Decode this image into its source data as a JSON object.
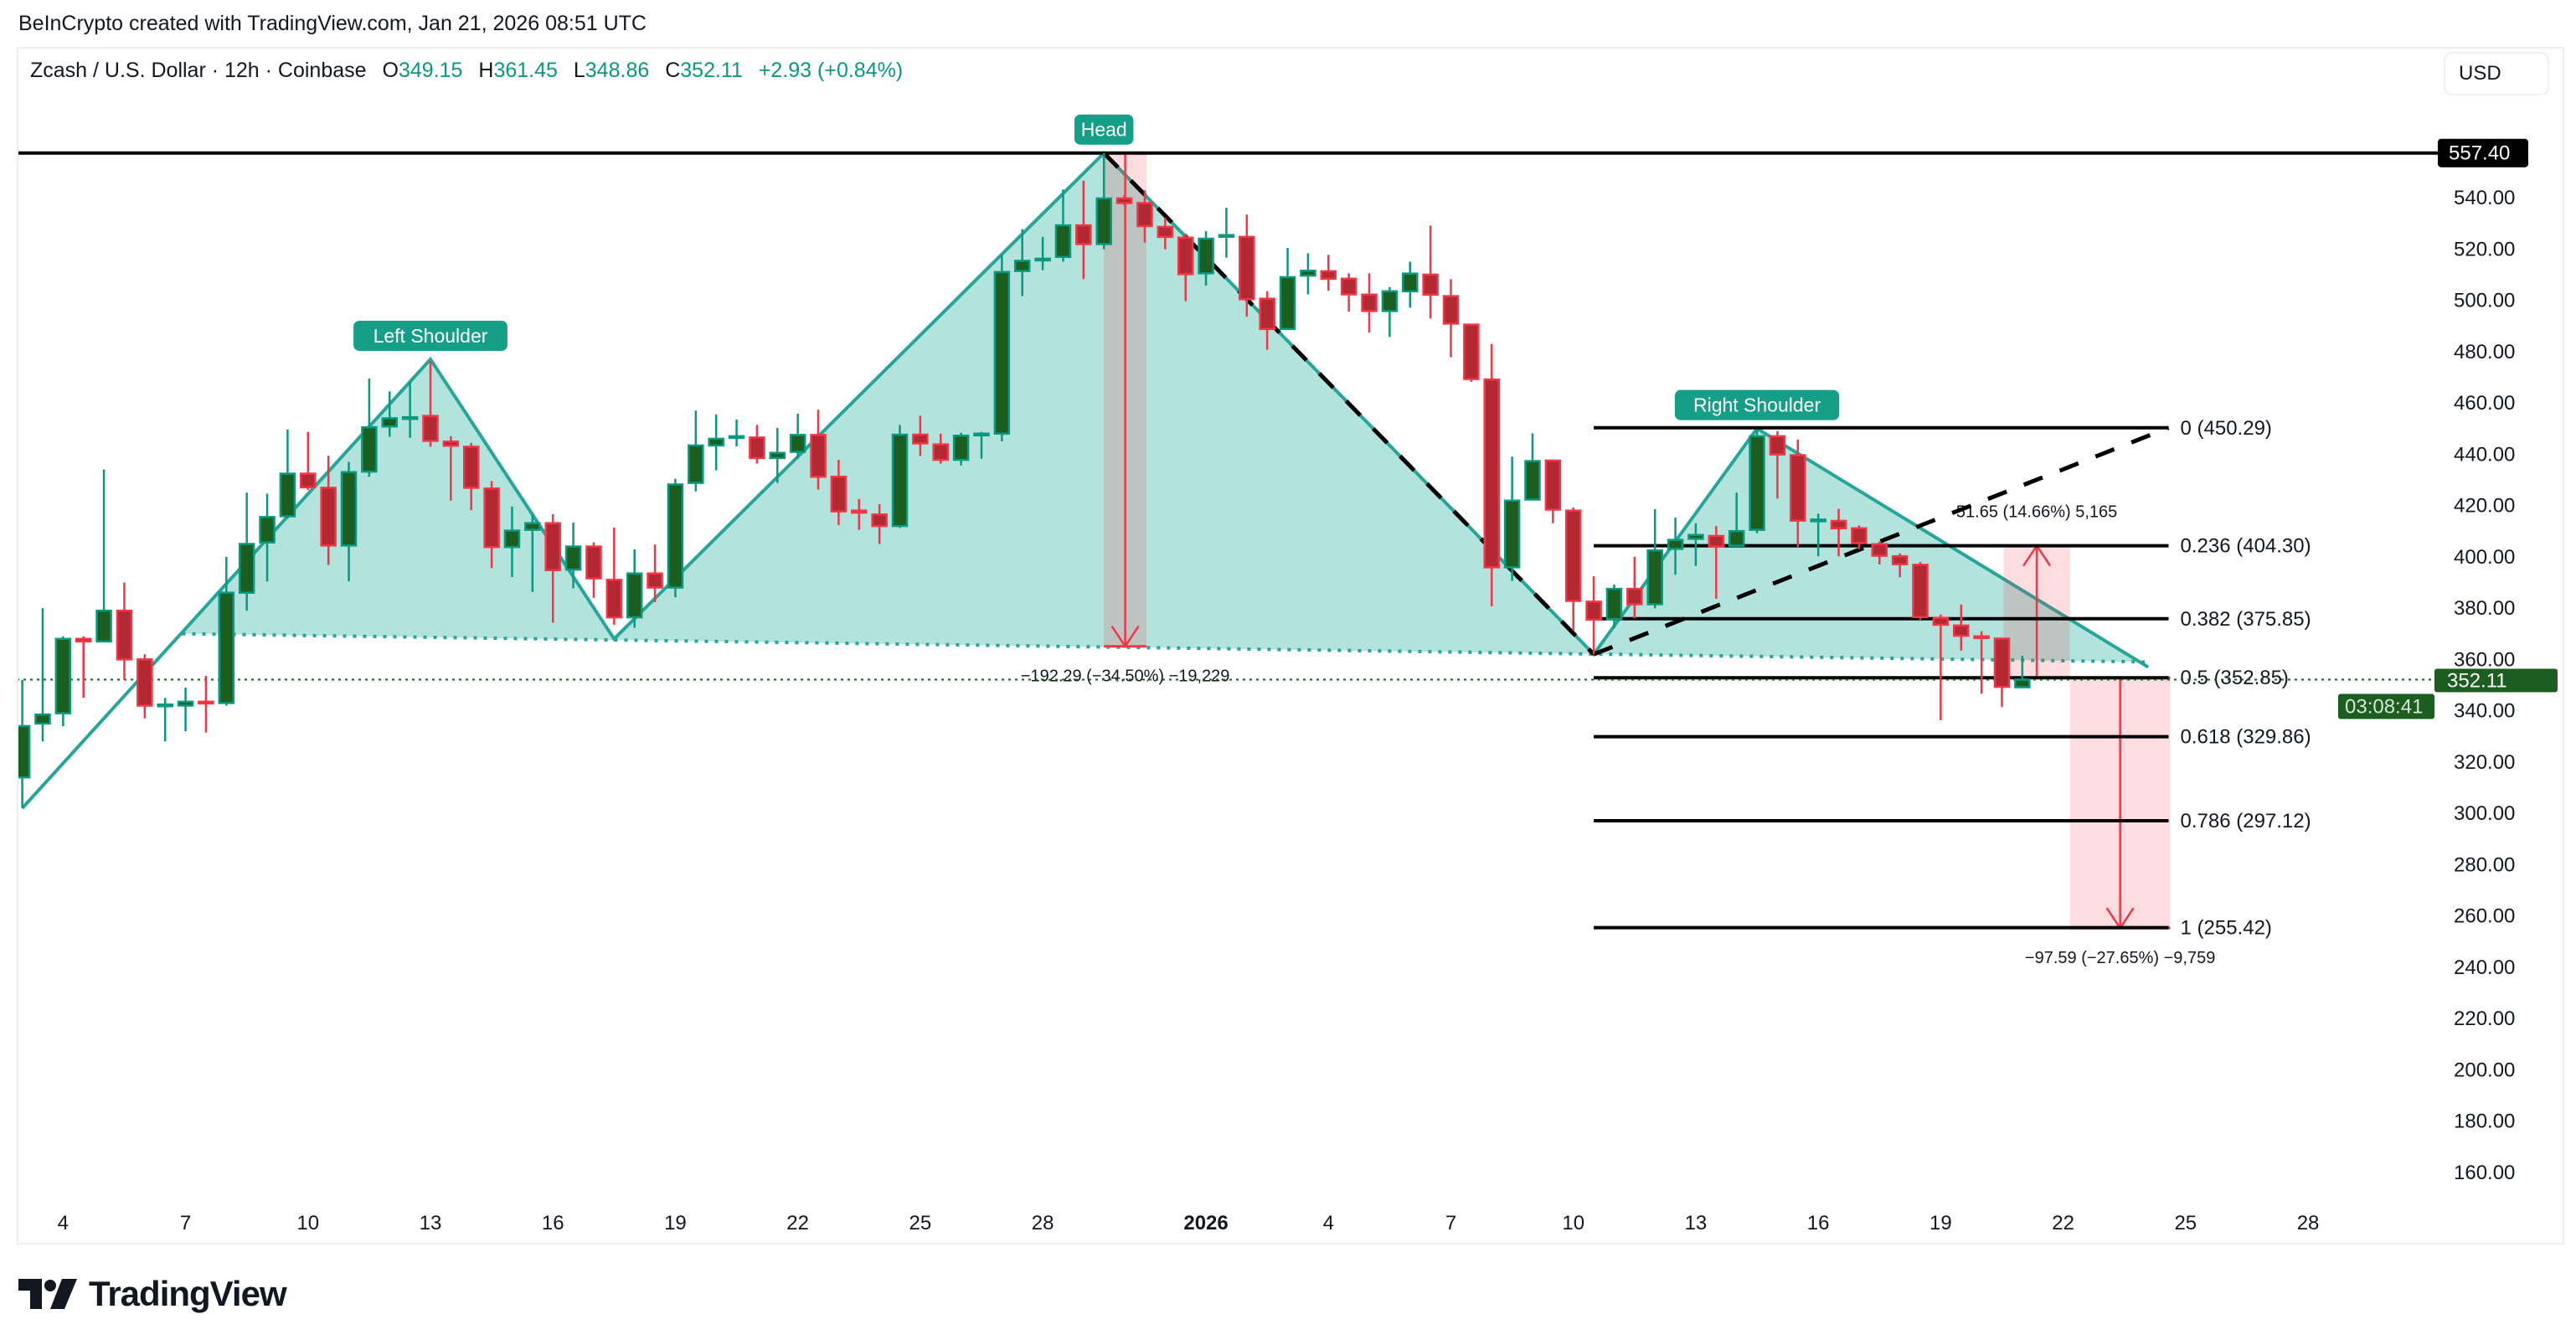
{
  "header": {
    "credit": "BeInCrypto created with TradingView.com, Jan 21, 2026 08:51 UTC"
  },
  "legend": {
    "symbol": "Zcash / U.S. Dollar · 12h · Coinbase",
    "o_label": "O",
    "o": "349.15",
    "h_label": "H",
    "h": "361.45",
    "l_label": "L",
    "l": "348.86",
    "c_label": "C",
    "c": "352.11",
    "change": "+2.93 (+0.84%)"
  },
  "currency_button": "USD",
  "logo_text": "TradingView",
  "colors": {
    "up": "#089981",
    "up_body": "#1b5e20",
    "down": "#f23645",
    "down_body": "#b22833",
    "pattern": "#26a69a",
    "pattern_fill": "#b2e3dc",
    "badge": "#159f88",
    "measure_fill": "#fddfe2",
    "last_price": "#1b5e20"
  },
  "chart_data": {
    "type": "candlestick",
    "interval": "12h",
    "ylim": [
      140,
      575
    ],
    "grid": false,
    "y_ticks": [
      "160.00",
      "180.00",
      "200.00",
      "220.00",
      "240.00",
      "260.00",
      "280.00",
      "300.00",
      "320.00",
      "340.00",
      "360.00",
      "380.00",
      "400.00",
      "420.00",
      "440.00",
      "460.00",
      "480.00",
      "500.00",
      "520.00",
      "540.00"
    ],
    "x_ticks": [
      {
        "t": "2025-12-04T00",
        "label": "4"
      },
      {
        "t": "2025-12-07T00",
        "label": "7"
      },
      {
        "t": "2025-12-10T00",
        "label": "10"
      },
      {
        "t": "2025-12-13T00",
        "label": "13"
      },
      {
        "t": "2025-12-16T00",
        "label": "16"
      },
      {
        "t": "2025-12-19T00",
        "label": "19"
      },
      {
        "t": "2025-12-22T00",
        "label": "22"
      },
      {
        "t": "2025-12-25T00",
        "label": "25"
      },
      {
        "t": "2025-12-28T00",
        "label": "28"
      },
      {
        "t": "2026-01-01T00",
        "label": "2026",
        "bold": true
      },
      {
        "t": "2026-01-04T00",
        "label": "4"
      },
      {
        "t": "2026-01-07T00",
        "label": "7"
      },
      {
        "t": "2026-01-10T00",
        "label": "10"
      },
      {
        "t": "2026-01-13T00",
        "label": "13"
      },
      {
        "t": "2026-01-16T00",
        "label": "16"
      },
      {
        "t": "2026-01-19T00",
        "label": "19"
      },
      {
        "t": "2026-01-22T00",
        "label": "22"
      },
      {
        "t": "2026-01-25T00",
        "label": "25"
      },
      {
        "t": "2026-01-28T00",
        "label": "28"
      }
    ],
    "last_price": {
      "value": 352.11,
      "label": "352.11",
      "countdown": "03:08:41"
    },
    "resistance": {
      "value": 557.4,
      "label": "557.40"
    },
    "candles": [
      [
        "2025-12-03T00",
        314,
        352,
        302,
        334
      ],
      [
        "2025-12-03T12",
        335,
        380,
        328,
        338.5
      ],
      [
        "2025-12-04T00",
        339,
        369,
        334,
        368
      ],
      [
        "2025-12-04T12",
        368,
        369,
        345,
        367
      ],
      [
        "2025-12-05T00",
        367,
        434,
        367,
        379
      ],
      [
        "2025-12-05T12",
        379,
        390,
        352,
        360
      ],
      [
        "2025-12-06T00",
        360,
        362,
        337,
        342
      ],
      [
        "2025-12-06T12",
        342,
        345,
        328,
        342.4
      ],
      [
        "2025-12-07T00",
        342,
        349,
        332,
        343.5
      ],
      [
        "2025-12-07T12",
        343.5,
        353.6,
        331.5,
        343
      ],
      [
        "2025-12-08T00",
        343,
        400,
        342,
        386
      ],
      [
        "2025-12-08T12",
        386,
        425,
        379,
        405
      ],
      [
        "2025-12-09T00",
        405.6,
        424.6,
        390.4,
        415.5
      ],
      [
        "2025-12-09T12",
        415.8,
        449.6,
        414.9,
        432.4
      ],
      [
        "2025-12-10T00",
        432.4,
        448.7,
        426,
        427.1
      ],
      [
        "2025-12-10T12",
        426.9,
        439.4,
        396.8,
        404.4
      ],
      [
        "2025-12-11T00",
        404.4,
        437,
        390.4,
        433
      ],
      [
        "2025-12-11T12",
        433.2,
        469.5,
        431.2,
        450.5
      ],
      [
        "2025-12-12T00",
        450.8,
        464.5,
        446.8,
        454
      ],
      [
        "2025-12-12T12",
        454,
        468,
        446.4,
        454.4
      ],
      [
        "2025-12-13T00",
        454.9,
        476.2,
        442.9,
        445.2
      ],
      [
        "2025-12-13T12",
        444.9,
        447,
        421.9,
        443.3
      ],
      [
        "2025-12-14T00",
        442.9,
        444.4,
        418.2,
        426.9
      ],
      [
        "2025-12-14T12",
        426.6,
        429.5,
        395.6,
        403.8
      ],
      [
        "2025-12-15T00",
        403.8,
        419.6,
        392.1,
        410.2
      ],
      [
        "2025-12-15T12",
        410.5,
        416.6,
        386.3,
        413.1
      ],
      [
        "2025-12-16T00",
        413.1,
        416.6,
        374.3,
        394.8
      ],
      [
        "2025-12-16T12",
        395,
        413.4,
        387.7,
        404
      ],
      [
        "2025-12-17T00",
        404,
        405.6,
        384,
        391.6
      ],
      [
        "2025-12-17T12",
        391,
        411.4,
        373.5,
        376.4
      ],
      [
        "2025-12-18T00",
        376.4,
        402.9,
        372.3,
        393.5
      ],
      [
        "2025-12-18T12",
        393.5,
        404.8,
        382.3,
        388
      ],
      [
        "2025-12-19T00",
        388,
        430.4,
        384.2,
        428.2
      ],
      [
        "2025-12-19T12",
        428.8,
        457,
        425.5,
        443.4
      ],
      [
        "2025-12-20T00",
        443.4,
        455.5,
        433.7,
        446
      ],
      [
        "2025-12-20T12",
        446.5,
        453.5,
        443,
        447
      ],
      [
        "2025-12-21T00",
        446.5,
        451.4,
        436.3,
        438.5
      ],
      [
        "2025-12-21T12",
        438.5,
        450.2,
        428.8,
        440.5
      ],
      [
        "2025-12-22T00",
        440.9,
        455.8,
        438.2,
        447.5
      ],
      [
        "2025-12-22T12",
        447.5,
        457.3,
        426.2,
        431.2
      ],
      [
        "2025-12-23T00",
        431.2,
        437.8,
        412.4,
        417.7
      ],
      [
        "2025-12-23T12",
        418,
        422.5,
        410.5,
        417.2
      ],
      [
        "2025-12-24T00",
        416.5,
        420.5,
        405,
        412
      ],
      [
        "2025-12-24T12",
        412,
        451.4,
        411.2,
        447.6
      ],
      [
        "2025-12-25T00",
        447.6,
        455,
        439.3,
        444.2
      ],
      [
        "2025-12-25T12",
        443.8,
        448,
        436.3,
        437.8
      ],
      [
        "2025-12-26T00",
        437.8,
        448.3,
        435.6,
        447.2
      ],
      [
        "2025-12-26T12",
        447.5,
        448.7,
        438.2,
        448
      ],
      [
        "2025-12-27T00",
        448,
        517.7,
        445,
        511
      ],
      [
        "2025-12-27T12",
        511.4,
        527.7,
        501.6,
        515.4
      ],
      [
        "2025-12-28T00",
        515.8,
        524.7,
        511.7,
        516.2
      ],
      [
        "2025-12-28T12",
        516.9,
        543.2,
        515.1,
        529.2
      ],
      [
        "2025-12-29T00",
        529.2,
        546.6,
        508.2,
        521.9
      ],
      [
        "2025-12-29T12",
        521.9,
        557.4,
        519.9,
        539.7
      ],
      [
        "2025-12-30T00",
        539.7,
        541,
        537,
        537.9
      ],
      [
        "2025-12-30T12",
        537.9,
        542.9,
        522.5,
        528.9
      ],
      [
        "2025-12-31T00",
        528.6,
        532.2,
        519.9,
        524.7
      ],
      [
        "2025-12-31T12",
        524.4,
        526,
        499.7,
        510.2
      ],
      [
        "2026-01-01T00",
        510.5,
        527,
        505.7,
        524
      ],
      [
        "2026-01-01T12",
        525,
        536.1,
        516.6,
        525.4
      ],
      [
        "2026-01-02T00",
        524.7,
        533.4,
        493.6,
        500.4
      ],
      [
        "2026-01-02T12",
        500.6,
        503.5,
        480.7,
        488.8
      ],
      [
        "2026-01-03T00",
        488.8,
        520.4,
        488.8,
        509
      ],
      [
        "2026-01-03T12",
        509.6,
        518.3,
        502.3,
        511.5
      ],
      [
        "2026-01-04T00",
        511.3,
        517.7,
        503.7,
        508.4
      ],
      [
        "2026-01-04T12",
        508.4,
        510.5,
        495.6,
        502.3
      ],
      [
        "2026-01-05T00",
        502.2,
        510.5,
        487.4,
        495.8
      ],
      [
        "2026-01-05T12",
        495.8,
        505.1,
        485.7,
        503.5
      ],
      [
        "2026-01-06T00",
        503.5,
        515,
        497.1,
        510.4
      ],
      [
        "2026-01-06T12",
        510,
        529.1,
        492.9,
        502.2
      ],
      [
        "2026-01-07T00",
        501.6,
        508.2,
        477.8,
        490.9
      ],
      [
        "2026-01-07T12",
        490.5,
        490.5,
        468.2,
        469.3
      ],
      [
        "2026-01-08T00",
        469.1,
        483,
        380.7,
        395.9
      ],
      [
        "2026-01-08T12",
        395.9,
        439,
        390.6,
        421.9
      ],
      [
        "2026-01-09T00",
        422.3,
        448.1,
        422.3,
        437.3
      ],
      [
        "2026-01-09T12",
        437.5,
        437.5,
        413.1,
        418.4
      ],
      [
        "2026-01-10T00",
        418,
        419.2,
        371.1,
        382.8
      ],
      [
        "2026-01-10T12",
        382.5,
        392.4,
        362,
        375.5
      ],
      [
        "2026-01-11T00",
        375.7,
        389.2,
        372.3,
        387.5
      ],
      [
        "2026-01-11T12",
        387.5,
        400,
        376,
        381.5
      ],
      [
        "2026-01-12T00",
        381.5,
        418.6,
        379.9,
        402.5
      ],
      [
        "2026-01-12T12",
        403.1,
        415.3,
        393,
        406.6
      ],
      [
        "2026-01-13T00",
        407,
        413.1,
        396.4,
        408.5
      ],
      [
        "2026-01-13T12",
        408.1,
        412,
        383.6,
        404
      ],
      [
        "2026-01-14T00",
        404.3,
        425,
        404.3,
        410
      ],
      [
        "2026-01-14T12",
        410.5,
        449.7,
        409.2,
        447
      ],
      [
        "2026-01-15T00",
        447,
        449,
        422.7,
        439.9
      ],
      [
        "2026-01-15T12",
        439.6,
        445.7,
        403.8,
        414.1
      ],
      [
        "2026-01-16T00",
        414,
        416.8,
        400.2,
        414.5
      ],
      [
        "2026-01-16T12",
        414,
        418.7,
        400.2,
        411.1
      ],
      [
        "2026-01-17T00",
        411.1,
        412.2,
        403,
        405.4
      ],
      [
        "2026-01-17T12",
        404.9,
        406,
        397,
        400.4
      ],
      [
        "2026-01-18T00",
        400.2,
        401.3,
        392,
        397.1
      ],
      [
        "2026-01-18T12",
        396.9,
        398,
        375.4,
        376.5
      ],
      [
        "2026-01-19T00",
        376.2,
        377.5,
        336.3,
        373.5
      ],
      [
        "2026-01-19T12",
        373.2,
        381.4,
        363.4,
        369.2
      ],
      [
        "2026-01-20T00",
        369,
        371,
        346.6,
        368.5
      ],
      [
        "2026-01-20T12",
        368.1,
        368.3,
        341.4,
        349.3
      ],
      [
        "2026-01-21T00",
        349.15,
        361.45,
        348.86,
        352.11
      ]
    ],
    "head_and_shoulders": {
      "points": [
        {
          "t": "2025-12-03T00",
          "p": 302
        },
        {
          "t": "2025-12-13T00",
          "p": 477
        },
        {
          "t": "2025-12-17T12",
          "p": 368
        },
        {
          "t": "2025-12-29T12",
          "p": 557.4
        },
        {
          "t": "2026-01-10T12",
          "p": 362
        },
        {
          "t": "2026-01-14T12",
          "p": 450
        },
        {
          "t": "2026-01-24T02",
          "p": 357
        }
      ],
      "neckline": [
        {
          "t": "2025-12-06T22",
          "p": 370
        },
        {
          "t": "2026-01-24T00",
          "p": 359
        }
      ],
      "labels": [
        {
          "text": "Left Shoulder",
          "t": "2025-12-13T00",
          "p": 477
        },
        {
          "text": "Head",
          "t": "2025-12-29T12",
          "p": 557.4
        },
        {
          "text": "Right Shoulder",
          "t": "2026-01-14T12",
          "p": 450
        }
      ]
    },
    "dashed_lines": [
      [
        {
          "t": "2025-12-29T12",
          "p": 557.4
        },
        {
          "t": "2026-01-10T12",
          "p": 362
        }
      ],
      [
        {
          "t": "2026-01-10T12",
          "p": 362
        },
        {
          "t": "2026-01-24T14",
          "p": 450.29
        }
      ]
    ],
    "fibonacci": {
      "from": "2026-01-10T12",
      "to": "2026-01-24T14",
      "levels": [
        {
          "ratio": "0",
          "price": 450.29,
          "label": "0 (450.29)"
        },
        {
          "ratio": "0.236",
          "price": 404.3,
          "label": "0.236 (404.30)"
        },
        {
          "ratio": "0.382",
          "price": 375.85,
          "label": "0.382 (375.85)"
        },
        {
          "ratio": "0.5",
          "price": 352.85,
          "label": "0.5 (352.85)"
        },
        {
          "ratio": "0.618",
          "price": 329.86,
          "label": "0.618 (329.86)"
        },
        {
          "ratio": "0.786",
          "price": 297.12,
          "label": "0.786 (297.12)"
        },
        {
          "ratio": "1",
          "price": 255.42,
          "label": "1 (255.42)"
        }
      ]
    },
    "measurements": [
      {
        "t1": "2025-12-29T12",
        "t2": "2025-12-30T13",
        "from": 557.4,
        "to": 365.11,
        "label": "−192.29 (−34.50%) −19,229"
      },
      {
        "t1": "2026-01-20T13",
        "t2": "2026-01-22T04",
        "from": 352.65,
        "to": 404.3,
        "label": "51.65 (14.66%) 5,165"
      },
      {
        "t1": "2026-01-22T04",
        "t2": "2026-01-24T15",
        "from": 352.85,
        "to": 255.26,
        "label": "−97.59 (−27.65%) −9,759"
      }
    ]
  }
}
